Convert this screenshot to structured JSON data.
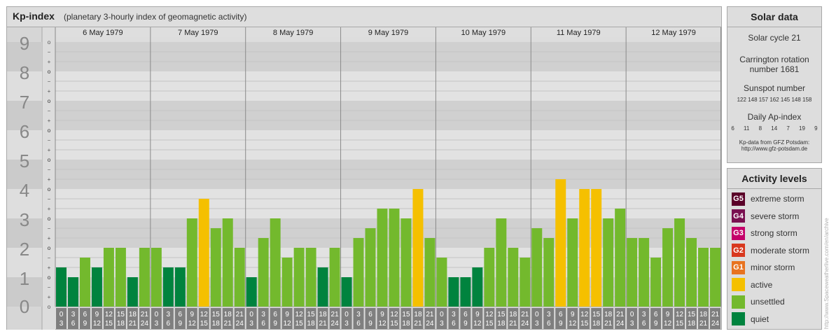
{
  "header": {
    "title": "Kp-index",
    "subtitle": "(planetary 3-hourly index of geomagnetic activity)"
  },
  "chart_data": {
    "type": "bar",
    "title": "Kp-index",
    "subtitle": "(planetary 3-hourly index of geomagnetic activity)",
    "y_range": [
      0,
      9
    ],
    "y_ticks": [
      "0",
      "1",
      "2",
      "3",
      "4",
      "5",
      "6",
      "7",
      "8",
      "9"
    ],
    "y_subticks": [
      "o",
      "+",
      "−",
      "o"
    ],
    "days": [
      "6 May 1979",
      "7 May 1979",
      "8 May 1979",
      "9 May 1979",
      "10 May 1979",
      "11 May 1979",
      "12 May 1979"
    ],
    "hour_slots": [
      [
        "0",
        "3"
      ],
      [
        "3",
        "6"
      ],
      [
        "6",
        "9"
      ],
      [
        "9",
        "12"
      ],
      [
        "12",
        "15"
      ],
      [
        "15",
        "18"
      ],
      [
        "18",
        "21"
      ],
      [
        "21",
        "24"
      ]
    ],
    "grid": true,
    "values": [
      [
        1.333,
        1.0,
        1.667,
        1.333,
        2.0,
        2.0,
        1.0,
        2.0
      ],
      [
        2.0,
        1.333,
        1.333,
        3.0,
        3.667,
        2.667,
        3.0,
        2.0
      ],
      [
        1.0,
        2.333,
        3.0,
        1.667,
        2.0,
        2.0,
        1.333,
        2.0
      ],
      [
        1.0,
        2.333,
        2.667,
        3.333,
        3.333,
        3.0,
        4.0,
        2.333
      ],
      [
        1.667,
        1.0,
        1.0,
        1.333,
        2.0,
        3.0,
        2.0,
        1.667
      ],
      [
        2.667,
        2.333,
        4.333,
        3.0,
        4.0,
        4.0,
        3.0,
        3.333
      ],
      [
        2.333,
        2.333,
        1.667,
        2.667,
        3.0,
        2.333,
        2.0,
        2.0
      ]
    ],
    "color_thresholds": {
      "quiet": "< 1.5",
      "unsettled": "1.5 - 3.5",
      "active": "≥ 3.5"
    },
    "colors": {
      "quiet": "#00833e",
      "unsettled": "#73b92d",
      "active": "#f5c000"
    }
  },
  "solar": {
    "title": "Solar data",
    "cycle": "Solar cycle 21",
    "carrington_line1": "Carrington rotation",
    "carrington_line2": "number 1681",
    "sunspot_title": "Sunspot number",
    "sunspot_values": "122 148 157 162 145 148 158",
    "ap_title": "Daily Ap-index",
    "ap_values": "6 11 8 14 7 19 9",
    "credit_line1": "Kp-data from GFZ Potsdam:",
    "credit_line2": "http://www.gfz-potsdam.de"
  },
  "levels": {
    "title": "Activity levels",
    "items": [
      {
        "code": "G5",
        "label": "extreme storm",
        "color": "#5a0028"
      },
      {
        "code": "G4",
        "label": "severe storm",
        "color": "#7a1050"
      },
      {
        "code": "G3",
        "label": "strong storm",
        "color": "#c4006a"
      },
      {
        "code": "G2",
        "label": "moderate storm",
        "color": "#d8381e"
      },
      {
        "code": "G1",
        "label": "minor storm",
        "color": "#e87320"
      },
      {
        "code": "",
        "label": "active",
        "color": "#f5c000"
      },
      {
        "code": "",
        "label": "unsettled",
        "color": "#73b92d"
      },
      {
        "code": "",
        "label": "quiet",
        "color": "#00833e"
      }
    ]
  },
  "watermark": "http://www.Spaceweatherlive.com/en/archive"
}
